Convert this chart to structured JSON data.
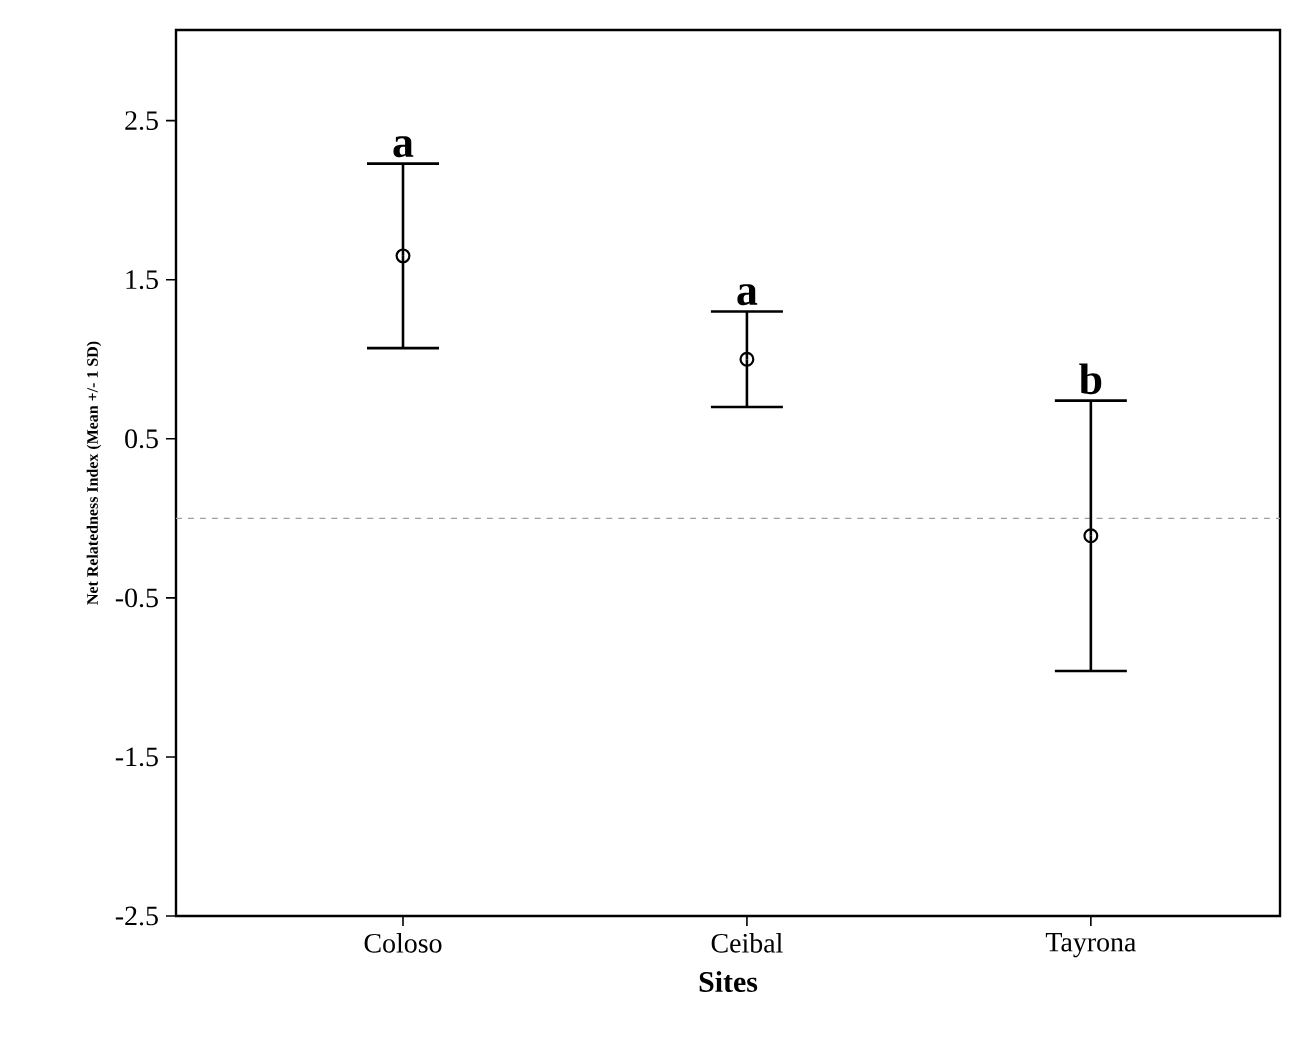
{
  "chart_data": {
    "type": "scatter",
    "xlabel": "Sites",
    "ylabel": "Net Relatedness Index (Mean +/- 1 SD)",
    "categories": [
      "Coloso",
      "Ceibal",
      "Tayrona"
    ],
    "values": [
      1.65,
      1.0,
      -0.11
    ],
    "errors": [
      0.58,
      0.3,
      0.85
    ],
    "color": "#000000",
    "marker": "circle",
    "ylim": [
      -2.5,
      3.07
    ],
    "yticks": [
      -2.5,
      -1.5,
      -0.5,
      0.5,
      1.5,
      2.5
    ],
    "ref_lines": [
      {
        "axis": "y",
        "value": 0,
        "color": "#a0a0a0",
        "line_style": "dashed"
      }
    ],
    "annotations": [
      "a",
      "a",
      "b"
    ]
  }
}
